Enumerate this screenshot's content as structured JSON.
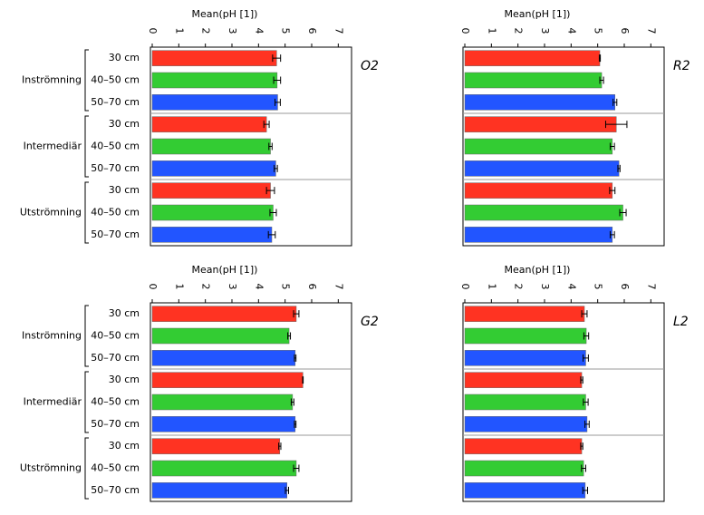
{
  "chart_data": [
    {
      "type": "bar",
      "title": "O2",
      "xlabel": "Mean(pH [1])",
      "xlim": [
        0,
        7.5
      ],
      "xticks": [
        0,
        1,
        2,
        3,
        4,
        5,
        6,
        7
      ],
      "groups": [
        "Inströmning",
        "Intermediär",
        "Utströmning"
      ],
      "series": [
        {
          "name": "30 cm",
          "color": "#ff3322",
          "values": [
            4.68,
            4.3,
            4.45
          ],
          "errors": [
            0.15,
            0.1,
            0.15
          ]
        },
        {
          "name": "40–50 cm",
          "color": "#33cc33",
          "values": [
            4.7,
            4.45,
            4.55
          ],
          "errors": [
            0.13,
            0.06,
            0.12
          ]
        },
        {
          "name": "50–70 cm",
          "color": "#2255ff",
          "values": [
            4.72,
            4.65,
            4.5
          ],
          "errors": [
            0.1,
            0.06,
            0.13
          ]
        }
      ]
    },
    {
      "type": "bar",
      "title": "R2",
      "xlabel": "Mean(pH [1])",
      "xlim": [
        0,
        7.5
      ],
      "xticks": [
        0,
        1,
        2,
        3,
        4,
        5,
        6,
        7
      ],
      "series": [
        {
          "color": "#ff3322",
          "values": [
            5.08,
            5.7,
            5.55
          ],
          "errors": [
            0.02,
            0.4,
            0.1
          ]
        },
        {
          "color": "#33cc33",
          "values": [
            5.15,
            5.55,
            5.95
          ],
          "errors": [
            0.07,
            0.08,
            0.12
          ]
        },
        {
          "color": "#2255ff",
          "values": [
            5.65,
            5.8,
            5.55
          ],
          "errors": [
            0.07,
            0.04,
            0.08
          ]
        }
      ]
    },
    {
      "type": "bar",
      "title": "G2",
      "xlabel": "Mean(pH [1])",
      "xlim": [
        0,
        7.5
      ],
      "xticks": [
        0,
        1,
        2,
        3,
        4,
        5,
        6,
        7
      ],
      "groups": [
        "Inströmning",
        "Intermediär",
        "Utströmning"
      ],
      "series": [
        {
          "name": "30 cm",
          "color": "#ff3322",
          "values": [
            5.42,
            5.67,
            4.8
          ],
          "errors": [
            0.1,
            0.01,
            0.04
          ]
        },
        {
          "name": "40–50 cm",
          "color": "#33cc33",
          "values": [
            5.15,
            5.28,
            5.42
          ],
          "errors": [
            0.05,
            0.05,
            0.1
          ]
        },
        {
          "name": "50–70 cm",
          "color": "#2255ff",
          "values": [
            5.38,
            5.38,
            5.07
          ],
          "errors": [
            0.03,
            0.03,
            0.06
          ]
        }
      ]
    },
    {
      "type": "bar",
      "title": "L2",
      "xlabel": "Mean(pH [1])",
      "xlim": [
        0,
        7.5
      ],
      "xticks": [
        0,
        1,
        2,
        3,
        4,
        5,
        6,
        7
      ],
      "series": [
        {
          "color": "#ff3322",
          "values": [
            4.5,
            4.4,
            4.4
          ],
          "errors": [
            0.1,
            0.04,
            0.04
          ]
        },
        {
          "color": "#33cc33",
          "values": [
            4.57,
            4.55,
            4.47
          ],
          "errors": [
            0.09,
            0.09,
            0.08
          ]
        },
        {
          "color": "#2255ff",
          "values": [
            4.55,
            4.6,
            4.53
          ],
          "errors": [
            0.1,
            0.08,
            0.09
          ]
        }
      ]
    }
  ]
}
